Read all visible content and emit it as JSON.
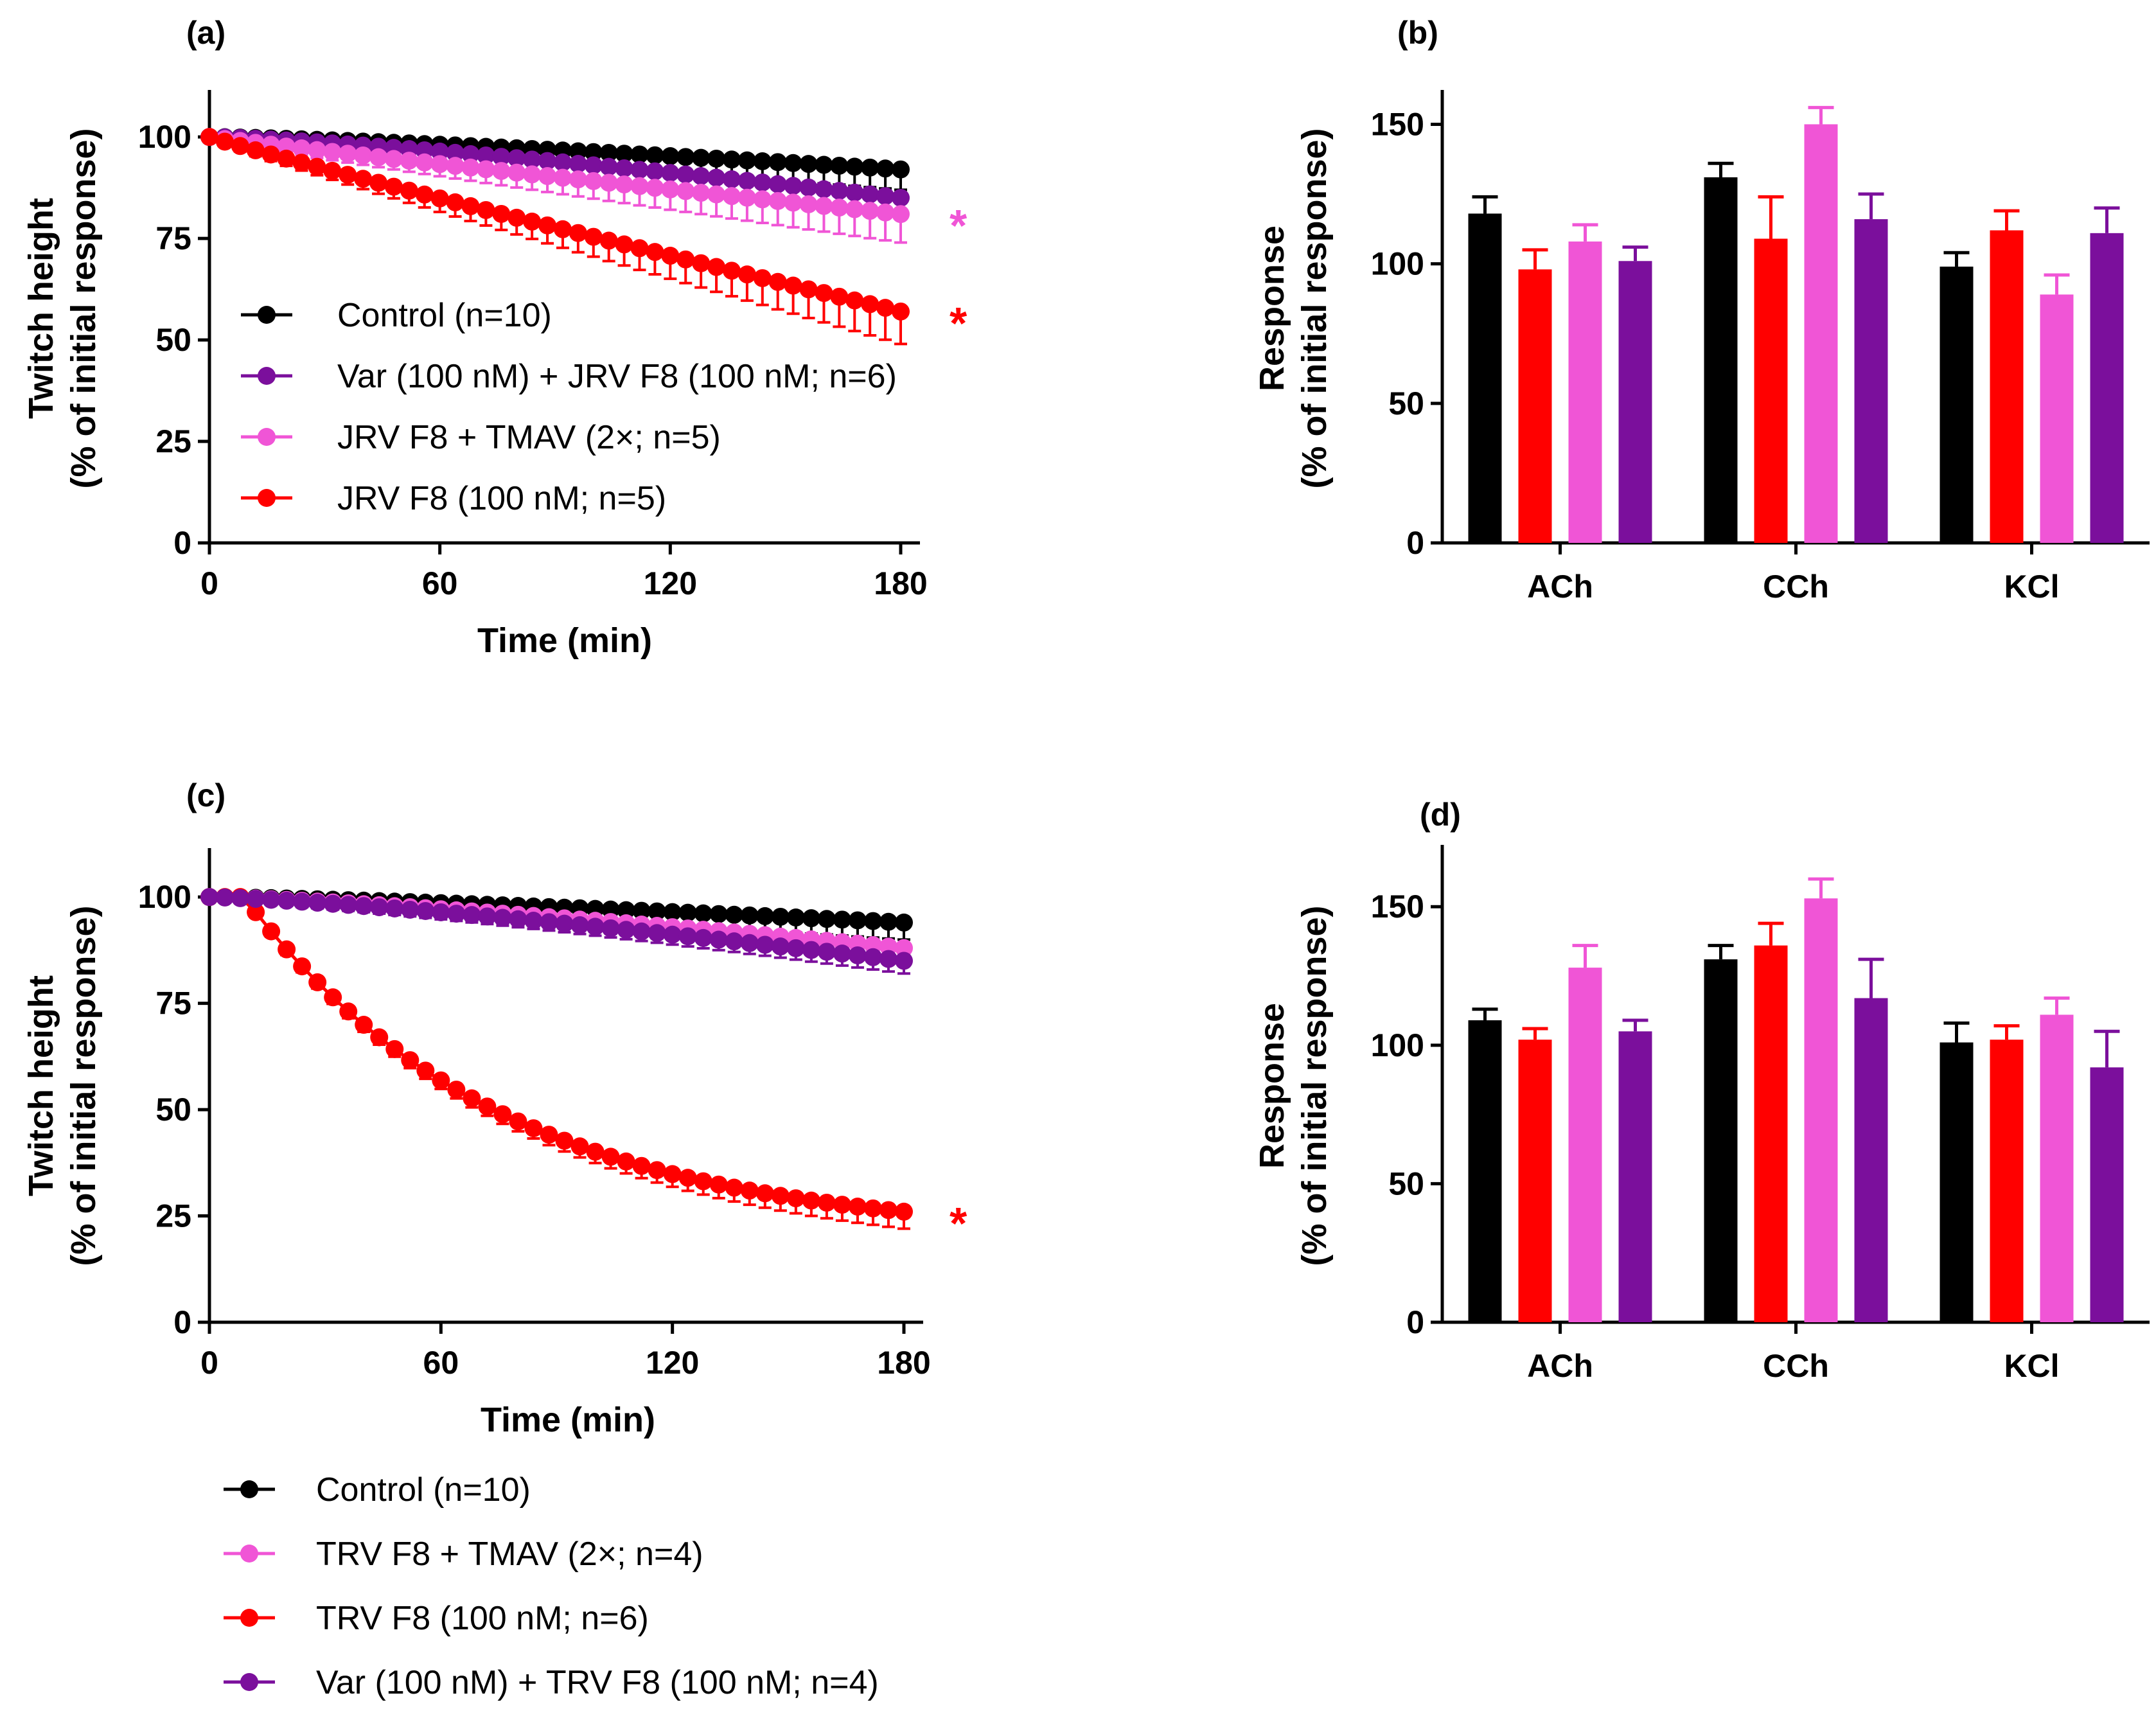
{
  "chart_data": [
    {
      "panel": "(a)",
      "type": "line",
      "xlabel": "Time (min)",
      "ylabel_line1": "Twitch height",
      "ylabel_line2": "(% of initial response)",
      "xlim": [
        0,
        180
      ],
      "ylim": [
        0,
        110
      ],
      "xticks": [
        "0",
        "60",
        "120",
        "180"
      ],
      "yticks": [
        "0",
        "25",
        "50",
        "75",
        "100"
      ],
      "legend_position": "bottom-left",
      "series": [
        {
          "name": "Control (n=10)",
          "color": "#000000",
          "end_value": 92,
          "max_sem": 4,
          "significant": false
        },
        {
          "name": "Var (100 nM) + JRV F8 (100 nM; n=6)",
          "color": "#7b0f9c",
          "end_value": 85,
          "max_sem": 4,
          "significant": false
        },
        {
          "name": "JRV F8 + TMAV (2×; n=5)",
          "color": "#f055d6",
          "end_value": 81,
          "max_sem": 6,
          "significant": true
        },
        {
          "name": "JRV F8 (100 nM; n=5)",
          "color": "#ff0000",
          "end_value": 57,
          "max_sem": 7,
          "significant": true
        }
      ],
      "sig_marker": "*"
    },
    {
      "panel": "(b)",
      "type": "bar",
      "ylabel_line1": "Response",
      "ylabel_line2": "(% of initial response)",
      "ylim": [
        0,
        160
      ],
      "yticks": [
        "0",
        "50",
        "100",
        "150"
      ],
      "categories": [
        "ACh",
        "CCh",
        "KCl"
      ],
      "series": [
        {
          "color": "#000000",
          "values": [
            118,
            131,
            99
          ],
          "errors": [
            6,
            5,
            5
          ]
        },
        {
          "color": "#ff0000",
          "values": [
            98,
            109,
            112
          ],
          "errors": [
            7,
            15,
            7
          ]
        },
        {
          "color": "#f055d6",
          "values": [
            108,
            150,
            89
          ],
          "errors": [
            6,
            6,
            7
          ]
        },
        {
          "color": "#7b0f9c",
          "values": [
            101,
            116,
            111
          ],
          "errors": [
            5,
            9,
            9
          ]
        }
      ]
    },
    {
      "panel": "(c)",
      "type": "line",
      "xlabel": "Time (min)",
      "ylabel_line1": "Twitch height",
      "ylabel_line2": "(% of initial response)",
      "xlim": [
        0,
        180
      ],
      "ylim": [
        0,
        110
      ],
      "xticks": [
        "0",
        "60",
        "120",
        "180"
      ],
      "yticks": [
        "0",
        "25",
        "50",
        "75",
        "100"
      ],
      "legend_position": "below",
      "series": [
        {
          "name": "Control (n=10)",
          "color": "#000000",
          "end_value": 94,
          "max_sem": 3,
          "significant": false
        },
        {
          "name": "TRV F8 + TMAV (2×; n=4)",
          "color": "#f055d6",
          "end_value": 88,
          "max_sem": 3,
          "significant": false
        },
        {
          "name": "TRV F8 (100 nM; n=6)",
          "color": "#ff0000",
          "end_value": 26,
          "max_sem": 3,
          "significant": true
        },
        {
          "name": "Var (100 nM) + TRV F8 (100 nM; n=4)",
          "color": "#7b0f9c",
          "end_value": 85,
          "max_sem": 2,
          "significant": false
        }
      ],
      "sig_marker": "*"
    },
    {
      "panel": "(d)",
      "type": "bar",
      "ylabel_line1": "Response",
      "ylabel_line2": "(% of initial response)",
      "ylim": [
        0,
        170
      ],
      "yticks": [
        "0",
        "50",
        "100",
        "150"
      ],
      "categories": [
        "ACh",
        "CCh",
        "KCl"
      ],
      "series": [
        {
          "color": "#000000",
          "values": [
            109,
            131,
            101
          ],
          "errors": [
            4,
            5,
            7
          ]
        },
        {
          "color": "#ff0000",
          "values": [
            102,
            136,
            102
          ],
          "errors": [
            4,
            8,
            5
          ]
        },
        {
          "color": "#f055d6",
          "values": [
            128,
            153,
            111
          ],
          "errors": [
            8,
            7,
            6
          ]
        },
        {
          "color": "#7b0f9c",
          "values": [
            105,
            117,
            92
          ],
          "errors": [
            4,
            14,
            13
          ]
        }
      ]
    }
  ]
}
